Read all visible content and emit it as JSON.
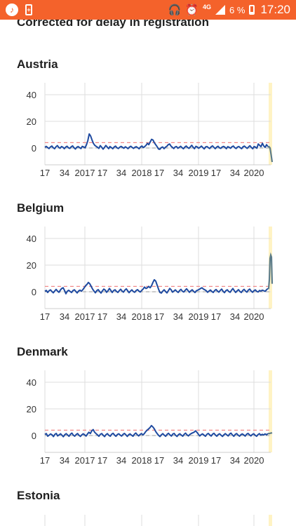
{
  "status_bar": {
    "app_icon": "music-note-icon",
    "battery_saver_icon": "battery-plus-icon",
    "headphones_icon": "headphones-icon",
    "alarm_icon": "alarm-clock-icon",
    "network_type": "4G",
    "battery_percent": "6 %",
    "time": "17:20",
    "bar_color": "#f4622b"
  },
  "page": {
    "subtitle": "Corrected for delay in registration"
  },
  "chart_data": [
    {
      "type": "line",
      "title": "Austria",
      "ylim": [
        -10,
        50
      ],
      "yticks": [
        0,
        20,
        40
      ],
      "x_ticks": [
        "17",
        "34",
        "2017",
        "17",
        "34",
        "2018",
        "17",
        "34",
        "2019",
        "17",
        "34",
        "2020"
      ],
      "baseline_threshold": 4,
      "colors": {
        "series": "#1f4aa0",
        "threshold": "#f08a8a",
        "highlight": "#fff3c4",
        "tail": "#5c7c8a"
      },
      "series": [
        {
          "values": [
            0.5,
            1.2,
            0.3,
            -0.4,
            0.8,
            1.5,
            0.2,
            -0.6,
            0.9,
            1.8,
            0.4,
            -0.2,
            1.1,
            0.6,
            -0.5,
            0.7,
            1.3,
            0.1,
            -0.3,
            0.9,
            1.6,
            0.2,
            -0.8,
            0.5,
            1.1,
            0.3,
            -0.4,
            1.2,
            0.8,
            0.1,
            2.5,
            5.5,
            10.5,
            9.0,
            6.0,
            3.5,
            2.0,
            1.2,
            0.5,
            -0.3,
            1.8,
            0.6,
            -0.9,
            0.4,
            1.9,
            0.7,
            -0.5,
            1.1,
            0.3,
            -0.6,
            0.8,
            1.4,
            0.2,
            -0.4,
            0.6,
            1.2,
            0.5,
            -0.2,
            0.9,
            0.3,
            -0.5,
            0.7,
            1.3,
            0.4,
            -0.3,
            0.6,
            1.0,
            0.2,
            -0.6,
            0.8,
            1.5,
            0.3,
            1.0,
            2.0,
            3.5,
            2.5,
            4.5,
            6.5,
            6.0,
            4.0,
            2.5,
            1.0,
            -0.8,
            -1.0,
            0.3,
            0.8,
            -0.5,
            0.6,
            1.2,
            2.5,
            3.0,
            1.5,
            0.5,
            -0.4,
            0.8,
            1.1,
            -0.2,
            0.5,
            1.3,
            0.2,
            -0.6,
            0.7,
            1.5,
            0.4,
            -0.3,
            0.9,
            2.0,
            0.6,
            -0.5,
            1.2,
            0.8,
            -0.2,
            0.5,
            1.4,
            0.3,
            -0.7,
            0.8,
            1.1,
            0.2,
            -0.4,
            0.9,
            1.6,
            0.4,
            -0.5,
            0.7,
            1.3,
            0.1,
            -0.3,
            0.8,
            1.2,
            0.5,
            -0.6,
            1.0,
            0.6,
            -0.2,
            0.9,
            1.5,
            0.3,
            -0.4,
            0.7,
            1.1,
            0.2,
            -0.5,
            0.9,
            1.4,
            0.5,
            -0.3,
            0.8,
            1.7,
            0.4,
            -0.6,
            1.1,
            0.7,
            -0.2,
            3.0,
            2.0,
            1.0,
            3.5,
            1.5,
            0.5,
            2.5,
            1.0
          ]
        }
      ],
      "tail": [
        1.0,
        0.0,
        -5.0,
        -10.5
      ]
    },
    {
      "type": "line",
      "title": "Belgium",
      "ylim": [
        -10,
        50
      ],
      "yticks": [
        0,
        20,
        40
      ],
      "x_ticks": [
        "17",
        "34",
        "2017",
        "17",
        "34",
        "2018",
        "17",
        "34",
        "2019",
        "17",
        "34",
        "2020"
      ],
      "baseline_threshold": 4,
      "colors": {
        "series": "#1f4aa0",
        "threshold": "#f08a8a",
        "highlight": "#fff3c4",
        "tail": "#5c7c8a"
      },
      "series": [
        {
          "values": [
            0.3,
            1.0,
            -0.5,
            0.8,
            1.4,
            0.2,
            -0.8,
            0.6,
            1.8,
            0.5,
            -0.4,
            1.2,
            2.5,
            3.0,
            1.0,
            -1.5,
            0.4,
            1.1,
            0.2,
            -0.6,
            0.9,
            1.5,
            0.3,
            -0.9,
            0.6,
            1.2,
            0.4,
            1.5,
            3.0,
            4.5,
            5.5,
            7.0,
            6.0,
            4.0,
            2.0,
            0.5,
            -0.8,
            0.9,
            1.6,
            0.2,
            -1.0,
            0.7,
            2.0,
            1.2,
            -0.4,
            0.8,
            2.5,
            1.0,
            -0.6,
            0.9,
            1.5,
            0.3,
            -0.5,
            0.8,
            1.9,
            0.6,
            -0.3,
            1.2,
            2.2,
            0.8,
            -0.7,
            0.5,
            1.4,
            0.2,
            -0.4,
            0.9,
            1.6,
            0.5,
            -0.2,
            1.0,
            2.0,
            3.5,
            2.5,
            3.0,
            4.0,
            3.0,
            4.5,
            7.0,
            9.0,
            8.0,
            5.0,
            2.0,
            -0.5,
            -1.0,
            0.4,
            1.5,
            0.2,
            -0.9,
            0.8,
            2.5,
            1.5,
            -0.3,
            0.6,
            1.4,
            0.3,
            -0.5,
            0.9,
            1.8,
            0.4,
            -0.2,
            1.1,
            2.2,
            0.9,
            -0.4,
            0.7,
            1.5,
            0.3,
            -0.6,
            0.8,
            1.2,
            1.8,
            2.5,
            3.0,
            2.0,
            1.5,
            0.8,
            -0.4,
            0.6,
            1.3,
            0.2,
            -0.5,
            0.9,
            1.7,
            0.6,
            -0.3,
            1.0,
            2.0,
            0.4,
            -0.7,
            0.8,
            1.5,
            0.3,
            -0.4,
            1.1,
            2.4,
            0.8,
            -0.5,
            0.7,
            1.6,
            0.2,
            -0.6,
            0.9,
            1.8,
            0.5,
            -0.3,
            1.2,
            2.0,
            0.6,
            -0.4,
            0.8,
            1.4,
            0.3,
            -0.2,
            1.0,
            0.5,
            1.2,
            0.8,
            0.3,
            1.5,
            2.5
          ]
        }
      ],
      "tail": [
        2.5,
        9.0,
        25.0,
        27.5,
        26.0,
        6.0
      ]
    },
    {
      "type": "line",
      "title": "Denmark",
      "ylim": [
        -10,
        50
      ],
      "yticks": [
        0,
        20,
        40
      ],
      "x_ticks": [
        "17",
        "34",
        "2017",
        "17",
        "34",
        "2018",
        "17",
        "34",
        "2019",
        "17",
        "34",
        "2020"
      ],
      "baseline_threshold": 4,
      "colors": {
        "series": "#1f4aa0",
        "threshold": "#f08a8a",
        "highlight": "#fff3c4",
        "tail": "#5c7c8a"
      },
      "series": [
        {
          "values": [
            0.8,
            1.5,
            -0.5,
            0.3,
            1.2,
            0.6,
            -0.8,
            0.9,
            1.6,
            -0.3,
            0.5,
            1.3,
            0.2,
            -0.9,
            0.7,
            1.4,
            0.4,
            -0.6,
            1.0,
            1.8,
            0.3,
            -0.5,
            0.8,
            1.5,
            0.2,
            -0.7,
            0.6,
            1.3,
            0.5,
            -0.4,
            1.2,
            2.5,
            1.5,
            3.5,
            4.5,
            2.5,
            1.5,
            0.5,
            -0.6,
            0.9,
            1.5,
            0.3,
            -0.8,
            0.7,
            1.4,
            0.2,
            -0.5,
            1.0,
            1.7,
            0.4,
            -0.6,
            0.8,
            1.3,
            0.3,
            -0.4,
            0.9,
            1.6,
            0.5,
            -0.7,
            0.7,
            1.2,
            0.2,
            -0.5,
            1.0,
            1.9,
            0.6,
            -0.3,
            0.8,
            1.5,
            0.4,
            1.5,
            3.0,
            4.0,
            5.0,
            6.0,
            7.5,
            6.5,
            5.0,
            3.0,
            1.5,
            0.2,
            -0.8,
            0.6,
            1.4,
            0.3,
            -0.6,
            0.9,
            1.7,
            0.5,
            -0.4,
            1.1,
            1.6,
            0.2,
            -0.7,
            0.7,
            1.3,
            0.4,
            -0.5,
            0.9,
            1.8,
            0.6,
            -0.3,
            0.8,
            1.5,
            2.0,
            2.5,
            3.5,
            2.5,
            1.0,
            -0.3,
            0.7,
            1.2,
            0.3,
            -0.6,
            0.9,
            1.6,
            0.5,
            -0.4,
            1.0,
            1.7,
            0.4,
            -0.5,
            0.8,
            1.3,
            0.2,
            -0.7,
            0.6,
            1.4,
            0.5,
            -0.3,
            1.1,
            1.8,
            0.4,
            -0.6,
            0.9,
            1.5,
            0.3,
            -0.5,
            0.7,
            1.2,
            0.4,
            -0.4,
            1.0,
            1.6,
            0.5,
            -0.3,
            0.8,
            1.3,
            0.2,
            -0.6,
            0.7,
            1.4,
            0.3,
            0.9,
            0.4,
            1.2,
            0.6,
            1.5
          ]
        }
      ],
      "tail": [
        1.5,
        1.8,
        2.0
      ]
    },
    {
      "type": "line",
      "title": "Estonia",
      "ylim": [
        -10,
        50
      ],
      "yticks": [
        0,
        20,
        40
      ],
      "x_ticks": [],
      "baseline_threshold": 4,
      "colors": {
        "series": "#1f4aa0",
        "threshold": "#f08a8a",
        "highlight": "#fff3c4",
        "tail": "#5c7c8a"
      },
      "series": []
    }
  ]
}
